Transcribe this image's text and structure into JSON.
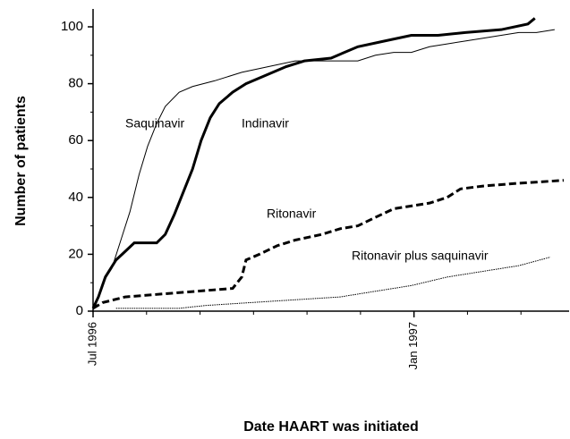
{
  "chart_data": {
    "type": "line",
    "xlabel": "Date HAART was initiated",
    "ylabel": "Number of patients",
    "xlim": [
      0,
      8.9
    ],
    "ylim": [
      0,
      100
    ],
    "xticks": [
      {
        "value": 0,
        "label": "Jul 1996"
      },
      {
        "value": 6,
        "label": "Jan 1997"
      }
    ],
    "xminorticks": [
      1,
      2,
      3,
      4,
      5,
      7,
      8
    ],
    "yticks": [
      0,
      20,
      40,
      60,
      80,
      100
    ],
    "yminorticks": [
      10,
      30,
      50,
      70,
      90
    ],
    "series": [
      {
        "name": "Saquinavir",
        "color": "#000000",
        "line_width": 1,
        "line_style": "solid",
        "x": [
          0.05,
          0.18,
          0.35,
          0.52,
          0.69,
          0.86,
          1.02,
          1.19,
          1.35,
          1.61,
          1.86,
          2.27,
          2.78,
          3.28,
          3.78,
          4.45,
          4.95,
          5.28,
          5.62,
          5.95,
          6.29,
          6.62,
          6.96,
          7.29,
          7.63,
          7.96,
          8.29,
          8.63
        ],
        "values": [
          2,
          10,
          15,
          25,
          35,
          48,
          58,
          66,
          72,
          77,
          79,
          81,
          84,
          86,
          88,
          88,
          88,
          90,
          91,
          91,
          93,
          94,
          95,
          96,
          97,
          98,
          98,
          99
        ]
      },
      {
        "name": "Indinavir",
        "color": "#000000",
        "line_width": 3,
        "line_style": "solid",
        "x": [
          0,
          0.1,
          0.23,
          0.43,
          0.6,
          0.77,
          1.19,
          1.35,
          1.52,
          1.69,
          1.86,
          2.02,
          2.19,
          2.36,
          2.61,
          2.86,
          3.11,
          3.36,
          3.61,
          3.95,
          4.45,
          4.95,
          5.45,
          5.95,
          6.45,
          6.96,
          7.63,
          8.13,
          8.26
        ],
        "values": [
          1,
          5,
          12,
          18,
          21,
          24,
          24,
          27,
          34,
          42,
          50,
          60,
          68,
          73,
          77,
          80,
          82,
          84,
          86,
          88,
          89,
          93,
          95,
          97,
          97,
          98,
          99,
          101,
          103
        ]
      },
      {
        "name": "Ritonavir",
        "color": "#000000",
        "line_width": 3,
        "line_style": "dashed",
        "x": [
          0,
          0.18,
          0.6,
          1.27,
          1.94,
          2.61,
          2.78,
          2.86,
          3.11,
          3.44,
          3.78,
          4.28,
          4.62,
          4.95,
          5.28,
          5.62,
          5.95,
          6.29,
          6.62,
          6.87,
          7.29,
          7.96,
          8.8
        ],
        "values": [
          1,
          3,
          5,
          6,
          7,
          8,
          12,
          18,
          20,
          23,
          25,
          27,
          29,
          30,
          33,
          36,
          37,
          38,
          40,
          43,
          44,
          45,
          46
        ]
      },
      {
        "name": "Ritonavir plus saquinavir",
        "color": "#000000",
        "line_width": 1,
        "line_style": "dotted",
        "x": [
          0.43,
          1.61,
          2.11,
          2.94,
          3.78,
          4.62,
          5.28,
          5.95,
          6.62,
          7.29,
          7.96,
          8.55
        ],
        "values": [
          1,
          1,
          2,
          3,
          4,
          5,
          7,
          9,
          12,
          14,
          16,
          19
        ]
      }
    ]
  }
}
